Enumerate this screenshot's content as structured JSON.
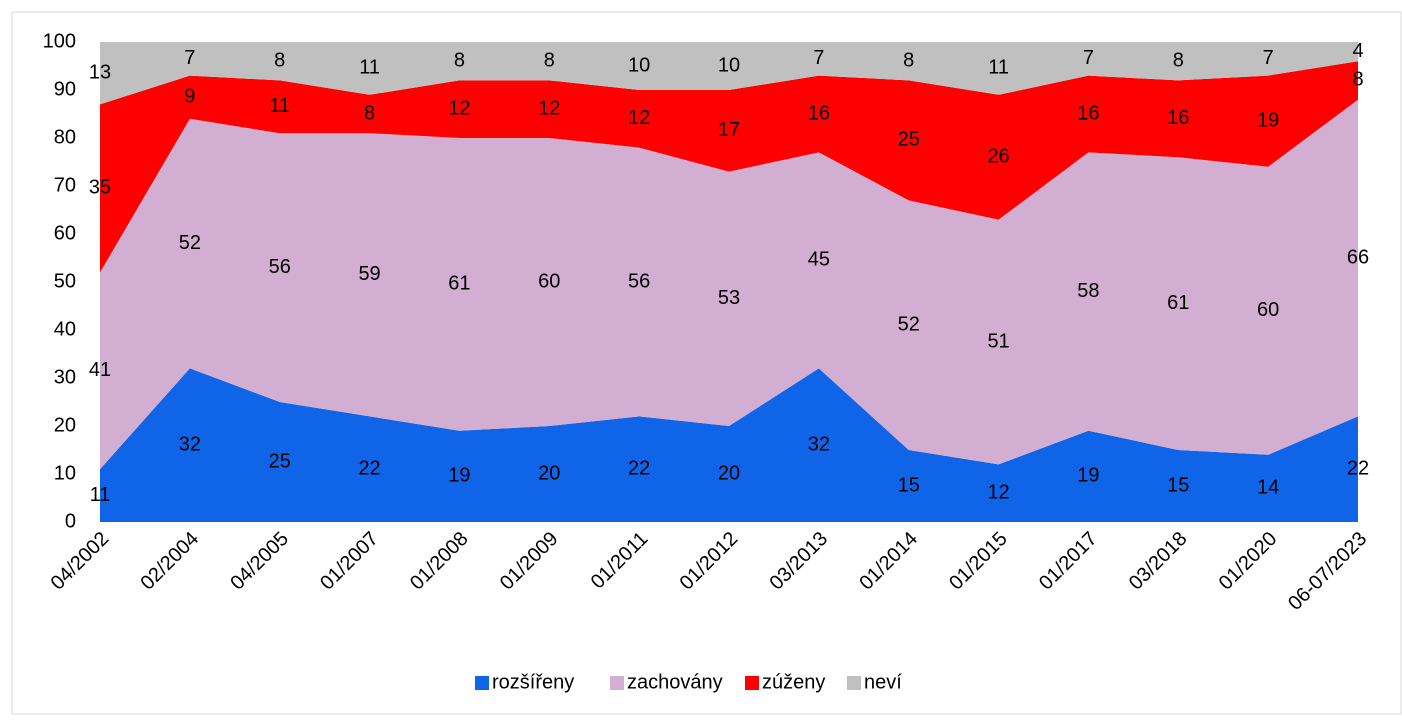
{
  "chart_data": {
    "type": "stacked_area",
    "categories": [
      "04/2002",
      "02/2004",
      "04/2005",
      "01/2007",
      "01/2008",
      "01/2009",
      "01/2011",
      "01/2012",
      "03/2013",
      "01/2014",
      "01/2015",
      "01/2017",
      "03/2018",
      "01/2020",
      "06-07/2023"
    ],
    "series": [
      {
        "name": "rozšířeny",
        "color": "#0f64e8",
        "values": [
          11,
          32,
          25,
          22,
          19,
          20,
          22,
          20,
          32,
          15,
          12,
          19,
          15,
          14,
          22
        ]
      },
      {
        "name": "zachovány",
        "color": "#d2aed2",
        "values": [
          41,
          52,
          56,
          59,
          61,
          60,
          56,
          53,
          45,
          52,
          51,
          58,
          61,
          60,
          66
        ]
      },
      {
        "name": "zúženy",
        "color": "#ff0000",
        "values": [
          35,
          9,
          11,
          8,
          12,
          12,
          12,
          17,
          16,
          25,
          26,
          16,
          16,
          19,
          8
        ]
      },
      {
        "name": "neví",
        "color": "#c0c0c0",
        "values": [
          13,
          7,
          8,
          11,
          8,
          8,
          10,
          10,
          7,
          8,
          11,
          7,
          8,
          7,
          4
        ]
      }
    ],
    "ylim": [
      0,
      100
    ],
    "yticks": [
      0,
      10,
      20,
      30,
      40,
      50,
      60,
      70,
      80,
      90,
      100
    ],
    "legend": "bottom"
  }
}
